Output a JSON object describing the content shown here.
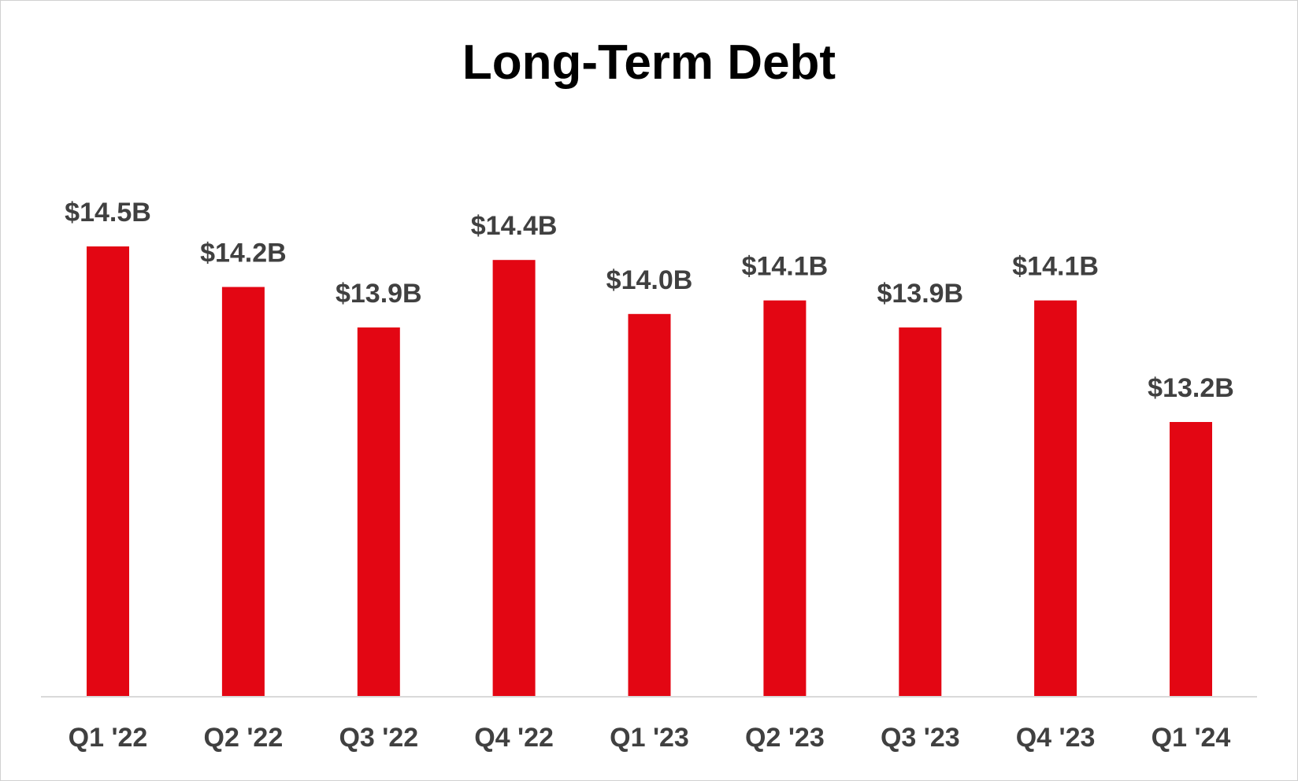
{
  "chart_data": {
    "type": "bar",
    "title": "Long-Term Debt",
    "categories": [
      "Q1 '22",
      "Q2 '22",
      "Q3 '22",
      "Q4 '22",
      "Q1 '23",
      "Q2 '23",
      "Q3 '23",
      "Q4 '23",
      "Q1 '24"
    ],
    "values": [
      14.5,
      14.2,
      13.9,
      14.4,
      14.0,
      14.1,
      13.9,
      14.1,
      13.2
    ],
    "data_labels": [
      "$14.5B",
      "$14.2B",
      "$13.9B",
      "$14.4B",
      "$14.0B",
      "$14.1B",
      "$13.9B",
      "$14.1B",
      "$13.2B"
    ],
    "unit": "$B",
    "xlabel": "",
    "ylabel": "",
    "grid": false,
    "legend": "none",
    "colors": {
      "bar": "#E30613",
      "label": "#404040",
      "axis": "#d9d9d9",
      "title": "#000000"
    }
  }
}
